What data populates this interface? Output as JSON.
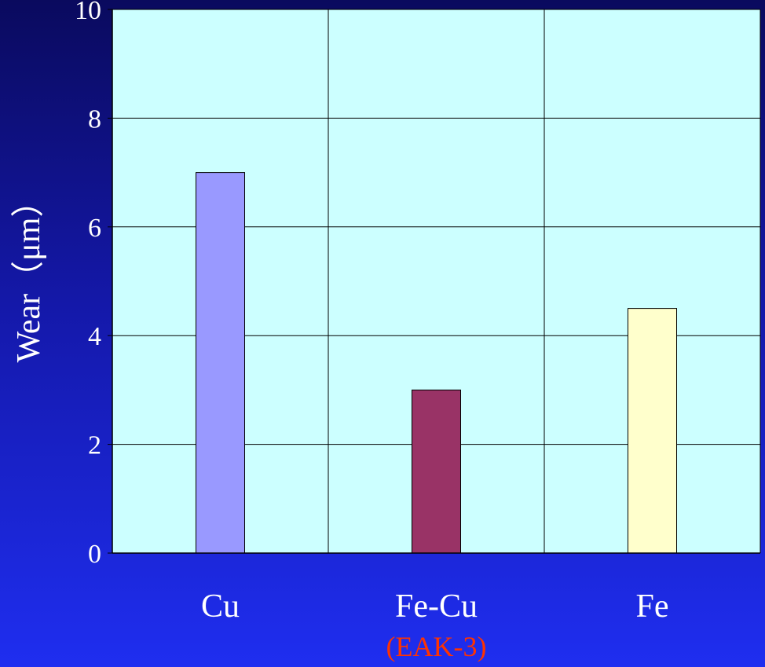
{
  "chart_data": {
    "type": "bar",
    "categories": [
      "Cu",
      "Fe-Cu",
      "Fe"
    ],
    "values": [
      7,
      3,
      4.5
    ],
    "bar_colors": [
      "#9999ff",
      "#993366",
      "#ffffcc"
    ],
    "ylabel": "Wear（μm）",
    "xlabel": "",
    "ylim": [
      0,
      10
    ],
    "yticks": [
      "0",
      "2",
      "4",
      "6",
      "8",
      "10"
    ],
    "grid": true,
    "plot_background": "#ccffff",
    "annotations": [
      {
        "category": "Fe-Cu",
        "text": "(EAK-3)",
        "color": "#ff3300"
      }
    ]
  }
}
